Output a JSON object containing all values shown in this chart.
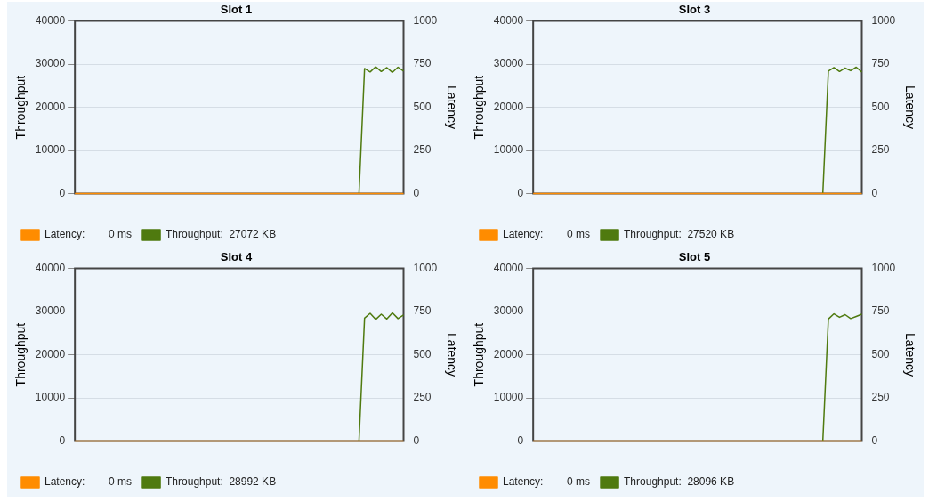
{
  "chart_data": [
    {
      "type": "line",
      "title": "Slot 1",
      "ylabel": "Throughput",
      "y2label": "Latency",
      "categories": [
        null,
        null,
        null,
        null,
        null,
        null,
        null,
        null,
        null,
        null,
        null,
        null,
        null,
        null,
        null,
        null,
        null,
        null,
        null,
        null,
        null,
        null,
        null,
        null,
        null,
        null,
        null,
        null,
        null,
        null,
        null,
        null,
        null,
        null,
        null,
        null,
        null,
        null,
        null,
        null,
        null,
        null,
        null,
        null,
        null,
        null,
        null,
        null,
        null,
        null,
        null,
        null,
        null,
        null,
        null,
        null,
        null,
        null,
        null,
        null
      ],
      "ylim": [
        0,
        40000
      ],
      "yticks": [
        0,
        10000,
        20000,
        30000,
        40000
      ],
      "y2lim": [
        0,
        1000
      ],
      "y2ticks": [
        0,
        250,
        500,
        750,
        1000
      ],
      "grid": "y",
      "legend": "bottom",
      "marker": "none",
      "series": [
        {
          "name": "Throughput:  27072 KB",
          "color": "#4f7a0f",
          "values": [
            null,
            null,
            null,
            null,
            null,
            null,
            null,
            null,
            null,
            null,
            null,
            null,
            null,
            null,
            null,
            null,
            null,
            null,
            null,
            null,
            null,
            null,
            null,
            null,
            null,
            null,
            null,
            null,
            null,
            null,
            null,
            null,
            null,
            null,
            null,
            null,
            null,
            null,
            null,
            null,
            null,
            null,
            null,
            null,
            null,
            null,
            null,
            null,
            null,
            null,
            null,
            0,
            29000,
            28200,
            29400,
            28300,
            29200,
            28100,
            29300,
            28400
          ]
        },
        {
          "name": "Latency:        0 ms",
          "color": "#ff8c00",
          "axis": "y2",
          "values": [
            0,
            0,
            0,
            0,
            0,
            0,
            0,
            0,
            0,
            0,
            0,
            0,
            0,
            0,
            0,
            0,
            0,
            0,
            0,
            0,
            0,
            0,
            0,
            0,
            0,
            0,
            0,
            0,
            0,
            0,
            0,
            0,
            0,
            0,
            0,
            0,
            0,
            0,
            0,
            0,
            0,
            0,
            0,
            0,
            0,
            0,
            0,
            0,
            0,
            0,
            0,
            0,
            0,
            0,
            0,
            0,
            0,
            0,
            0,
            0
          ]
        }
      ]
    },
    {
      "type": "line",
      "title": "Slot 3",
      "ylabel": "Throughput",
      "y2label": "Latency",
      "categories": [
        null,
        null,
        null,
        null,
        null,
        null,
        null,
        null,
        null,
        null,
        null,
        null,
        null,
        null,
        null,
        null,
        null,
        null,
        null,
        null,
        null,
        null,
        null,
        null,
        null,
        null,
        null,
        null,
        null,
        null,
        null,
        null,
        null,
        null,
        null,
        null,
        null,
        null,
        null,
        null,
        null,
        null,
        null,
        null,
        null,
        null,
        null,
        null,
        null,
        null,
        null,
        null,
        null,
        null,
        null,
        null,
        null,
        null,
        null,
        null
      ],
      "ylim": [
        0,
        40000
      ],
      "yticks": [
        0,
        10000,
        20000,
        30000,
        40000
      ],
      "y2lim": [
        0,
        1000
      ],
      "y2ticks": [
        0,
        250,
        500,
        750,
        1000
      ],
      "grid": "y",
      "legend": "bottom",
      "marker": "none",
      "series": [
        {
          "name": "Throughput:  27520 KB",
          "color": "#4f7a0f",
          "values": [
            null,
            null,
            null,
            null,
            null,
            null,
            null,
            null,
            null,
            null,
            null,
            null,
            null,
            null,
            null,
            null,
            null,
            null,
            null,
            null,
            null,
            null,
            null,
            null,
            null,
            null,
            null,
            null,
            null,
            null,
            null,
            null,
            null,
            null,
            null,
            null,
            null,
            null,
            null,
            null,
            null,
            null,
            null,
            null,
            null,
            null,
            null,
            null,
            null,
            null,
            null,
            null,
            0,
            28400,
            29200,
            28300,
            29100,
            28500,
            29300,
            28200
          ]
        },
        {
          "name": "Latency:        0 ms",
          "color": "#ff8c00",
          "axis": "y2",
          "values": [
            0,
            0,
            0,
            0,
            0,
            0,
            0,
            0,
            0,
            0,
            0,
            0,
            0,
            0,
            0,
            0,
            0,
            0,
            0,
            0,
            0,
            0,
            0,
            0,
            0,
            0,
            0,
            0,
            0,
            0,
            0,
            0,
            0,
            0,
            0,
            0,
            0,
            0,
            0,
            0,
            0,
            0,
            0,
            0,
            0,
            0,
            0,
            0,
            0,
            0,
            0,
            0,
            0,
            0,
            0,
            0,
            0,
            0,
            0,
            0
          ]
        }
      ]
    },
    {
      "type": "line",
      "title": "Slot 4",
      "ylabel": "Throughput",
      "y2label": "Latency",
      "categories": [
        null,
        null,
        null,
        null,
        null,
        null,
        null,
        null,
        null,
        null,
        null,
        null,
        null,
        null,
        null,
        null,
        null,
        null,
        null,
        null,
        null,
        null,
        null,
        null,
        null,
        null,
        null,
        null,
        null,
        null,
        null,
        null,
        null,
        null,
        null,
        null,
        null,
        null,
        null,
        null,
        null,
        null,
        null,
        null,
        null,
        null,
        null,
        null,
        null,
        null,
        null,
        null,
        null,
        null,
        null,
        null,
        null,
        null,
        null,
        null
      ],
      "ylim": [
        0,
        40000
      ],
      "yticks": [
        0,
        10000,
        20000,
        30000,
        40000
      ],
      "y2lim": [
        0,
        1000
      ],
      "y2ticks": [
        0,
        250,
        500,
        750,
        1000
      ],
      "grid": "y",
      "legend": "bottom",
      "marker": "none",
      "series": [
        {
          "name": "Throughput:  28992 KB",
          "color": "#4f7a0f",
          "values": [
            null,
            null,
            null,
            null,
            null,
            null,
            null,
            null,
            null,
            null,
            null,
            null,
            null,
            null,
            null,
            null,
            null,
            null,
            null,
            null,
            null,
            null,
            null,
            null,
            null,
            null,
            null,
            null,
            null,
            null,
            null,
            null,
            null,
            null,
            null,
            null,
            null,
            null,
            null,
            null,
            null,
            null,
            null,
            null,
            null,
            null,
            null,
            null,
            null,
            null,
            null,
            0,
            28500,
            29600,
            28200,
            29400,
            28300,
            29700,
            28400,
            29200
          ]
        },
        {
          "name": "Latency:        0 ms",
          "color": "#ff8c00",
          "axis": "y2",
          "values": [
            0,
            0,
            0,
            0,
            0,
            0,
            0,
            0,
            0,
            0,
            0,
            0,
            0,
            0,
            0,
            0,
            0,
            0,
            0,
            0,
            0,
            0,
            0,
            0,
            0,
            0,
            0,
            0,
            0,
            0,
            0,
            0,
            0,
            0,
            0,
            0,
            0,
            0,
            0,
            0,
            0,
            0,
            0,
            0,
            0,
            0,
            0,
            0,
            0,
            0,
            0,
            0,
            0,
            0,
            0,
            0,
            0,
            0,
            0,
            0
          ]
        }
      ]
    },
    {
      "type": "line",
      "title": "Slot 5",
      "ylabel": "Throughput",
      "y2label": "Latency",
      "categories": [
        null,
        null,
        null,
        null,
        null,
        null,
        null,
        null,
        null,
        null,
        null,
        null,
        null,
        null,
        null,
        null,
        null,
        null,
        null,
        null,
        null,
        null,
        null,
        null,
        null,
        null,
        null,
        null,
        null,
        null,
        null,
        null,
        null,
        null,
        null,
        null,
        null,
        null,
        null,
        null,
        null,
        null,
        null,
        null,
        null,
        null,
        null,
        null,
        null,
        null,
        null,
        null,
        null,
        null,
        null,
        null,
        null,
        null,
        null,
        null
      ],
      "ylim": [
        0,
        40000
      ],
      "yticks": [
        0,
        10000,
        20000,
        30000,
        40000
      ],
      "y2lim": [
        0,
        1000
      ],
      "y2ticks": [
        0,
        250,
        500,
        750,
        1000
      ],
      "grid": "y",
      "legend": "bottom",
      "marker": "none",
      "series": [
        {
          "name": "Throughput:  28096 KB",
          "color": "#4f7a0f",
          "values": [
            null,
            null,
            null,
            null,
            null,
            null,
            null,
            null,
            null,
            null,
            null,
            null,
            null,
            null,
            null,
            null,
            null,
            null,
            null,
            null,
            null,
            null,
            null,
            null,
            null,
            null,
            null,
            null,
            null,
            null,
            null,
            null,
            null,
            null,
            null,
            null,
            null,
            null,
            null,
            null,
            null,
            null,
            null,
            null,
            null,
            null,
            null,
            null,
            null,
            null,
            null,
            null,
            0,
            28300,
            29500,
            28700,
            29300,
            28400,
            28900,
            29400
          ]
        },
        {
          "name": "Latency:        0 ms",
          "color": "#ff8c00",
          "axis": "y2",
          "values": [
            0,
            0,
            0,
            0,
            0,
            0,
            0,
            0,
            0,
            0,
            0,
            0,
            0,
            0,
            0,
            0,
            0,
            0,
            0,
            0,
            0,
            0,
            0,
            0,
            0,
            0,
            0,
            0,
            0,
            0,
            0,
            0,
            0,
            0,
            0,
            0,
            0,
            0,
            0,
            0,
            0,
            0,
            0,
            0,
            0,
            0,
            0,
            0,
            0,
            0,
            0,
            0,
            0,
            0,
            0,
            0,
            0,
            0,
            0,
            0
          ]
        }
      ]
    }
  ]
}
